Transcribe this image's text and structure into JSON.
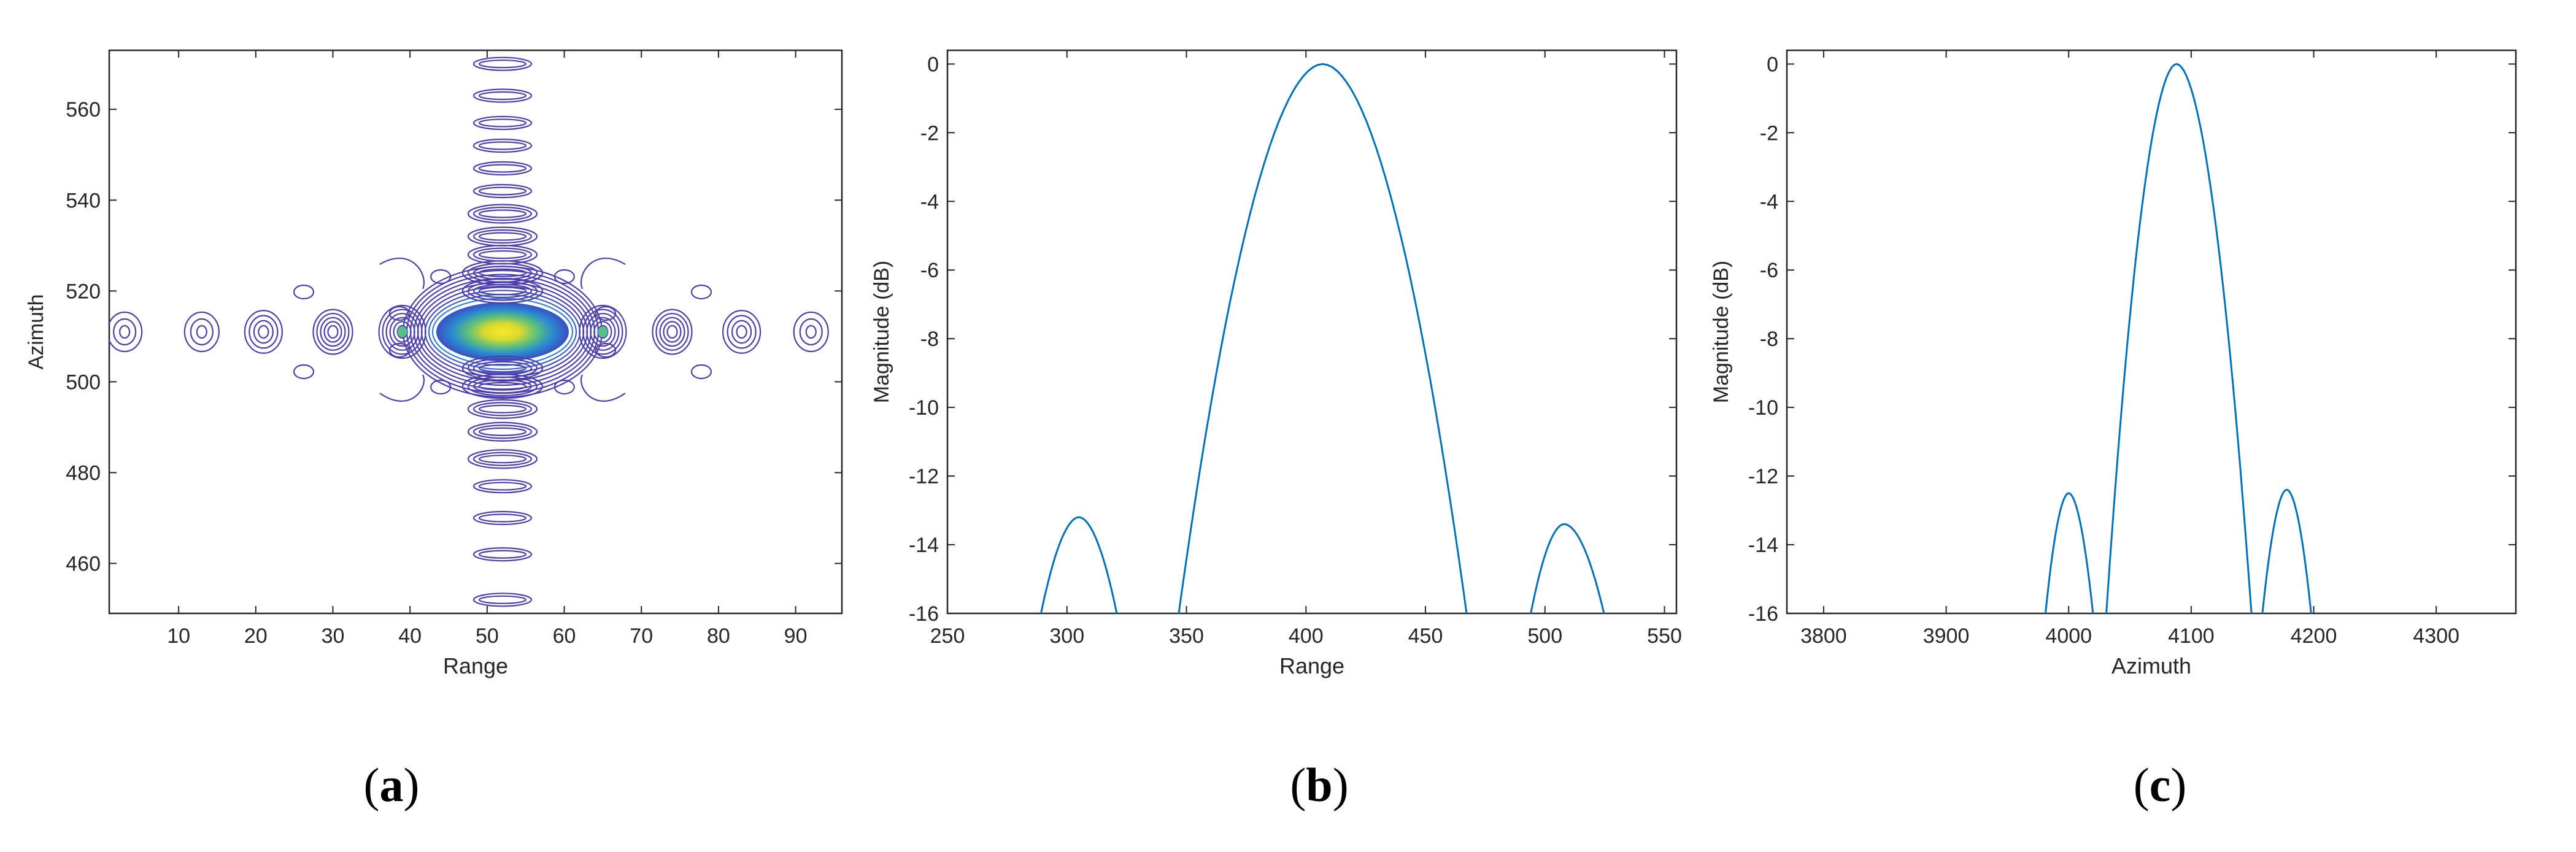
{
  "chart_data": [
    {
      "type": "contour",
      "panel": "a",
      "xlabel": "Range",
      "ylabel": "Azimuth",
      "xlim": [
        1,
        96
      ],
      "ylim": [
        449,
        573
      ],
      "xticks": [
        10,
        20,
        30,
        40,
        50,
        60,
        70,
        80,
        90
      ],
      "yticks": [
        460,
        480,
        500,
        520,
        540,
        560
      ],
      "peak": {
        "x": 52,
        "y": 511
      },
      "range_sidelobes_x": [
        3,
        13,
        21,
        30,
        39,
        65,
        74,
        83,
        92
      ],
      "azimuth_sidelobes_y": [
        452,
        462,
        470,
        477,
        483,
        489,
        494,
        499,
        503,
        520,
        524,
        528,
        532,
        537,
        542,
        547,
        552,
        557,
        563,
        570
      ],
      "line_color": "#4b3fb0",
      "peak_color": "#f5e92b"
    },
    {
      "type": "line",
      "panel": "b",
      "xlabel": "Range",
      "ylabel": "Magnitude (dB)",
      "xlim": [
        250,
        555
      ],
      "ylim": [
        -16,
        0.4
      ],
      "xticks": [
        250,
        300,
        350,
        400,
        450,
        500,
        550
      ],
      "yticks": [
        0,
        -2,
        -4,
        -6,
        -8,
        -10,
        -12,
        -14,
        -16
      ],
      "lobes": [
        {
          "left": 288,
          "peak_x": 305,
          "peak_y": -13.2,
          "right": 322
        },
        {
          "left": 346,
          "peak_x": 407,
          "peak_y": 0,
          "right": 468
        },
        {
          "left": 493,
          "peak_x": 508,
          "peak_y": -13.4,
          "right": 526
        }
      ],
      "line_color": "#0072bd"
    },
    {
      "type": "line",
      "panel": "c",
      "xlabel": "Azimuth",
      "ylabel": "Magnitude (dB)",
      "xlim": [
        3770,
        4365
      ],
      "ylim": [
        -16,
        0.4
      ],
      "xticks": [
        3800,
        3900,
        4000,
        4100,
        4200,
        4300
      ],
      "yticks": [
        0,
        -2,
        -4,
        -6,
        -8,
        -10,
        -12,
        -14,
        -16
      ],
      "lobes": [
        {
          "left": 3980,
          "peak_x": 4000,
          "peak_y": -12.5,
          "right": 4021
        },
        {
          "left": 4030,
          "peak_x": 4088,
          "peak_y": 0,
          "right": 4150
        },
        {
          "left": 4157,
          "peak_x": 4178,
          "peak_y": -12.4,
          "right": 4199
        }
      ],
      "line_color": "#0072bd"
    }
  ],
  "labels": {
    "a": "a",
    "b": "b",
    "c": "c"
  }
}
